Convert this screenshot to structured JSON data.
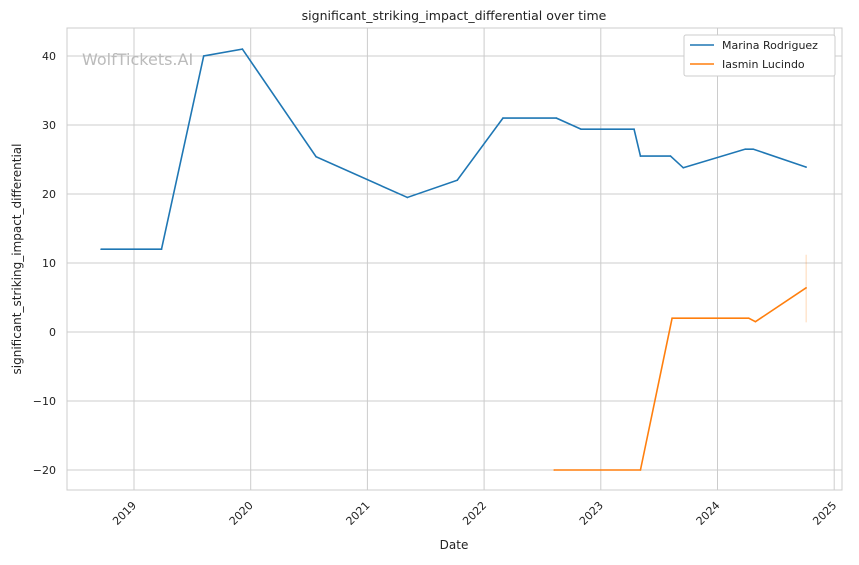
{
  "chart_data": {
    "type": "line",
    "title": "significant_striking_impact_differential over time",
    "xlabel": "Date",
    "ylabel": "significant_striking_impact_differential",
    "watermark": "WolfTickets.AI",
    "x_ticks": [
      "2019",
      "2020",
      "2021",
      "2022",
      "2023",
      "2024",
      "2025"
    ],
    "y_ticks": [
      -20,
      -10,
      0,
      10,
      20,
      30,
      40
    ],
    "xlim": [
      "2018-06-01",
      "2025-02-01"
    ],
    "ylim": [
      -23,
      44
    ],
    "grid": true,
    "legend_position": "top-right",
    "series": [
      {
        "name": "Marina Rodriguez",
        "color": "#1f77b4",
        "points": [
          [
            "2018-09-20",
            12
          ],
          [
            "2019-03-28",
            12
          ],
          [
            "2019-08-07",
            40
          ],
          [
            "2019-12-06",
            41
          ],
          [
            "2020-07-24",
            25.4
          ],
          [
            "2021-05-06",
            19.5
          ],
          [
            "2021-10-09",
            22
          ],
          [
            "2022-03-01",
            31
          ],
          [
            "2022-08-15",
            31
          ],
          [
            "2022-10-31",
            29.4
          ],
          [
            "2023-04-15",
            29.4
          ],
          [
            "2023-05-05",
            25.5
          ],
          [
            "2023-08-07",
            25.5
          ],
          [
            "2023-09-16",
            23.8
          ],
          [
            "2024-03-28",
            26.5
          ],
          [
            "2024-04-22",
            26.5
          ],
          [
            "2024-10-05",
            23.9
          ]
        ]
      },
      {
        "name": "Iasmin Lucindo",
        "color": "#ff7f0e",
        "points": [
          [
            "2022-08-08",
            -20
          ],
          [
            "2023-05-05",
            -20
          ],
          [
            "2023-08-12",
            2
          ],
          [
            "2024-04-08",
            2
          ],
          [
            "2024-04-29",
            1.5
          ],
          [
            "2024-10-05",
            6.4
          ]
        ],
        "error_band": {
          "x": "2024-10-05",
          "low": 1.4,
          "high": 11.2
        }
      }
    ]
  }
}
